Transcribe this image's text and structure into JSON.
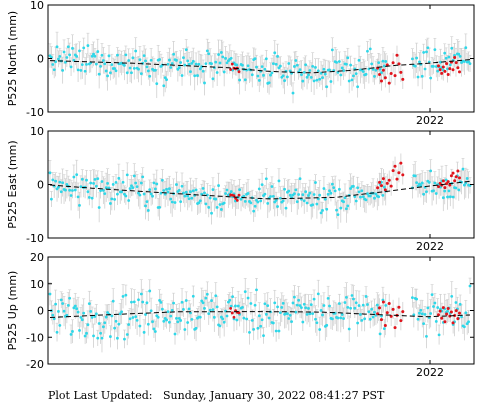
{
  "footer": {
    "label": "Plot Last Updated:",
    "timestamp": "Sunday, January 30, 2022 08:41:27 PST"
  },
  "colors": {
    "points": "#2fd7e8",
    "recent_points": "#e0141c",
    "error_bars": "#cfcfcf",
    "trend": "#000000",
    "axes": "#000000"
  },
  "chart_data": [
    {
      "type": "scatter",
      "ylabel": "P525 North (mm)",
      "ylim": [
        -10,
        10
      ],
      "yticks": [
        -10,
        0,
        10
      ],
      "xtick_labels": [
        "2022"
      ],
      "grid": false,
      "trend": [
        [
          0.0,
          -0.4
        ],
        [
          0.2,
          -0.9
        ],
        [
          0.42,
          -1.7
        ],
        [
          0.52,
          -2.4
        ],
        [
          0.62,
          -2.7
        ],
        [
          0.72,
          -2.2
        ],
        [
          0.82,
          -1.3
        ],
        [
          0.9,
          -0.9
        ],
        [
          1.0,
          -0.2
        ]
      ],
      "red_tail": [
        -1.8,
        -3.0,
        -4.2,
        -2.2,
        -3.6,
        -1.2,
        -4.6,
        -2.8,
        -0.8,
        -3.2,
        0.6,
        -1.0,
        -2.6,
        -3.9
      ]
    },
    {
      "type": "scatter",
      "ylabel": "P525 East (mm)",
      "ylim": [
        -10,
        10
      ],
      "yticks": [
        -10,
        0,
        10
      ],
      "xtick_labels": [
        "2022"
      ],
      "grid": false,
      "trend": [
        [
          0.0,
          -0.1
        ],
        [
          0.12,
          -0.8
        ],
        [
          0.32,
          -1.8
        ],
        [
          0.52,
          -2.7
        ],
        [
          0.68,
          -2.4
        ],
        [
          0.8,
          -1.3
        ],
        [
          0.88,
          -0.5
        ],
        [
          1.0,
          0.6
        ]
      ],
      "red_tail": [
        -0.6,
        0.4,
        -0.2,
        1.1,
        -1.0,
        0.2,
        0.8,
        -0.3,
        2.6,
        3.4,
        1.0,
        2.2,
        4.0,
        1.8
      ]
    },
    {
      "type": "scatter",
      "ylabel": "P525 Up (mm)",
      "ylim": [
        -20,
        20
      ],
      "yticks": [
        -20,
        -10,
        0,
        10,
        20
      ],
      "xtick_labels": [
        "2022"
      ],
      "grid": false,
      "trend": [
        [
          0.0,
          -2.6
        ],
        [
          0.15,
          -1.5
        ],
        [
          0.3,
          -0.5
        ],
        [
          0.5,
          -0.4
        ],
        [
          0.65,
          -0.6
        ],
        [
          0.8,
          -1.7
        ],
        [
          0.9,
          -2.3
        ],
        [
          1.0,
          -1.7
        ]
      ],
      "red_tail": [
        -1.2,
        1.0,
        -3.4,
        3.2,
        -5.6,
        -0.8,
        2.6,
        -2.2,
        0.4,
        -6.4,
        -1.8,
        1.2,
        -3.8,
        -0.4
      ]
    }
  ]
}
